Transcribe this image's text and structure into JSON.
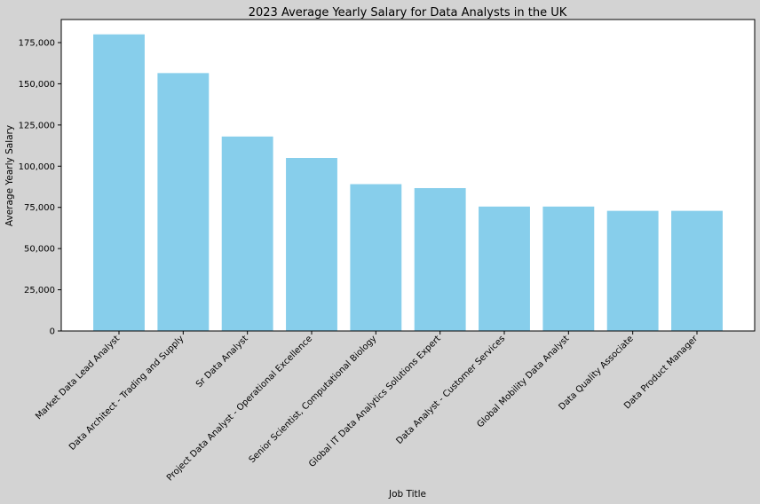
{
  "chart_data": {
    "type": "bar",
    "title": "2023 Average Yearly Salary for Data Analysts in the UK",
    "xlabel": "Job Title",
    "ylabel": "Average Yearly Salary",
    "ylim": [
      0,
      189000
    ],
    "yticks": [
      0,
      25000,
      50000,
      75000,
      100000,
      125000,
      150000,
      175000
    ],
    "ytick_labels": [
      "0",
      "25,000",
      "50,000",
      "75,000",
      "100,000",
      "125,000",
      "150,000",
      "175,000"
    ],
    "grid": false,
    "bar_color": "#87ceeb",
    "background": "#d3d3d3",
    "plot_background": "#ffffff",
    "categories": [
      "Market Data Lead Analyst",
      "Data Architect - Trading and Supply",
      "Sr Data Analyst",
      "Project Data Analyst - Operational Excellence",
      "Senior Scientist, Computational Biology",
      "Global IT Data Analytics Solutions Expert",
      "Data Analyst - Customer Services",
      "Global Mobility Data Analyst",
      "Data Quality Associate",
      "Data Product Manager"
    ],
    "values": [
      180000,
      156500,
      118000,
      105000,
      89100,
      86700,
      75500,
      75500,
      72900,
      72900
    ]
  }
}
